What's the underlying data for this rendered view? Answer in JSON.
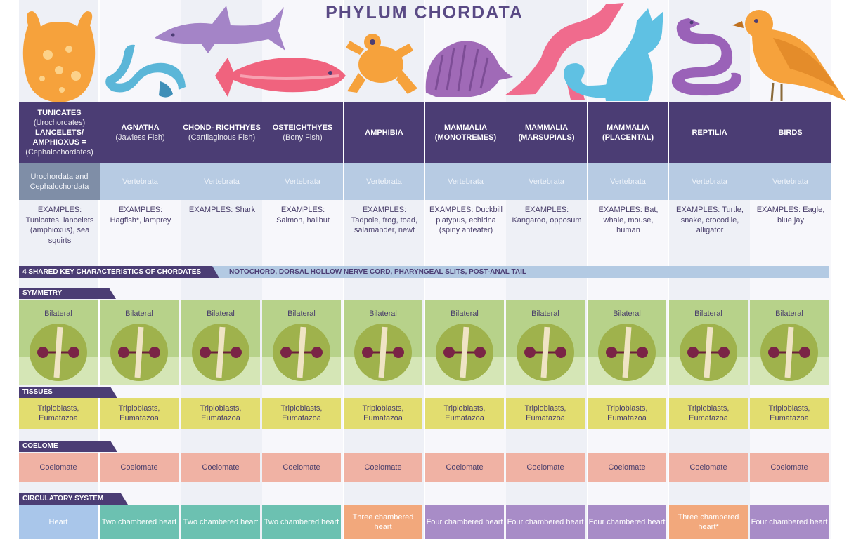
{
  "title": "PHYLUM CHORDATA",
  "columns": [
    {
      "name": "TUNICATES",
      "sub": "(Urochordates)",
      "name2": "LANCELETS/ AMPHIOXUS =",
      "sub2": "(Cephalochordates)",
      "subphylum": "Urochordata and Cephalochordata",
      "examples": "EXAMPLES: Tunicates, lancelets (amphioxus), sea squirts",
      "symmetry": "Bilateral",
      "tissues": "Triploblasts, Eumatazoa",
      "coelome": "Coelomate",
      "circulatory": "Heart"
    },
    {
      "name": "AGNATHA",
      "sub": "(Jawless Fish)",
      "subphylum": "Vertebrata",
      "examples": "EXAMPLES: Hagfish*, lamprey",
      "symmetry": "Bilateral",
      "tissues": "Triploblasts, Eumatazoa",
      "coelome": "Coelomate",
      "circulatory": "Two chambered heart"
    },
    {
      "name": "CHOND- RICHTHYES",
      "sub": "(Cartilaginous Fish)",
      "subphylum": "Vertebrata",
      "examples": "EXAMPLES: Shark",
      "symmetry": "Bilateral",
      "tissues": "Triploblasts, Eumatazoa",
      "coelome": "Coelomate",
      "circulatory": "Two chambered heart"
    },
    {
      "name": "OSTEICHTHYES",
      "sub": "(Bony Fish)",
      "subphylum": "Vertebrata",
      "examples": "EXAMPLES: Salmon, halibut",
      "symmetry": "Bilateral",
      "tissues": "Triploblasts, Eumatazoa",
      "coelome": "Coelomate",
      "circulatory": "Two chambered heart"
    },
    {
      "name": "AMPHIBIA",
      "sub": "",
      "subphylum": "Vertebrata",
      "examples": "EXAMPLES: Tadpole, frog, toad, salamander, newt",
      "symmetry": "Bilateral",
      "tissues": "Triploblasts, Eumatazoa",
      "coelome": "Coelomate",
      "circulatory": "Three chambered heart"
    },
    {
      "name": "MAMMALIA (MONOTREMES)",
      "sub": "",
      "subphylum": "Vertebrata",
      "examples": "EXAMPLES: Duckbill platypus, echidna (spiny anteater)",
      "symmetry": "Bilateral",
      "tissues": "Triploblasts, Eumatazoa",
      "coelome": "Coelomate",
      "circulatory": "Four chambered heart"
    },
    {
      "name": "MAMMALIA (MARSUPIALS)",
      "sub": "",
      "subphylum": "Vertebrata",
      "examples": "EXAMPLES: Kangaroo, opposum",
      "symmetry": "Bilateral",
      "tissues": "Triploblasts, Eumatazoa",
      "coelome": "Coelomate",
      "circulatory": "Four chambered heart"
    },
    {
      "name": "MAMMALIA (PLACENTAL)",
      "sub": "",
      "subphylum": "Vertebrata",
      "examples": "EXAMPLES: Bat, whale, mouse, human",
      "symmetry": "Bilateral",
      "tissues": "Triploblasts, Eumatazoa",
      "coelome": "Coelomate",
      "circulatory": "Four chambered heart"
    },
    {
      "name": "REPTILIA",
      "sub": "",
      "subphylum": "Vertebrata",
      "examples": "EXAMPLES: Turtle, snake, crocodile, alligator",
      "symmetry": "Bilateral",
      "tissues": "Triploblasts, Eumatazoa",
      "coelome": "Coelomate",
      "circulatory": "Three chambered heart*"
    },
    {
      "name": "BIRDS",
      "sub": "",
      "subphylum": "Vertebrata",
      "examples": "EXAMPLES: Eagle, blue jay",
      "symmetry": "Bilateral",
      "tissues": "Triploblasts, Eumatazoa",
      "coelome": "Coelomate",
      "circulatory": "Four chambered heart"
    }
  ],
  "shared": {
    "label": "4 SHARED KEY CHARACTERISTICS OF CHORDATES",
    "text": "NOTOCHORD, DORSAL HOLLOW NERVE CORD, PHARYNGEAL SLITS, POST-ANAL TAIL"
  },
  "sections": {
    "symmetry": "SYMMETRY",
    "tissues": "TISSUES",
    "coelome": "COELOME",
    "circulatory": "CIRCULATORY SYSTEM"
  },
  "circulatory_colors": [
    "#a9c6ea",
    "#6cc1b1",
    "#6cc1b1",
    "#6cc1b1",
    "#f2a87c",
    "#a88cc7",
    "#a88cc7",
    "#a88cc7",
    "#f2a87c",
    "#a88cc7"
  ],
  "animal_icons": [
    "tunicate-icon",
    "eel-icon",
    "shark-icon",
    "salmon-icon",
    "frog-icon",
    "echidna-icon",
    "kangaroo-icon",
    "cat-icon",
    "snake-icon",
    "bird-icon"
  ]
}
